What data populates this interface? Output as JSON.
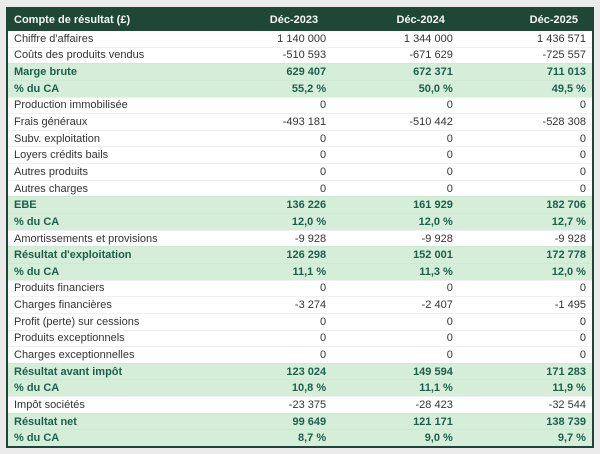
{
  "colors": {
    "header_bg": "#1e4737",
    "header_text": "#f7f7f4",
    "highlight_bg": "#d5eed9",
    "highlight_text": "#1d5f4b",
    "body_text": "#333333",
    "page_bg": "#ebebeb"
  },
  "chart_data": {
    "type": "table",
    "title": "Compte de résultat (£)",
    "columns": [
      "Déc-2023",
      "Déc-2024",
      "Déc-2025"
    ],
    "rows": [
      {
        "label": "Chiffre d'affaires",
        "values": [
          "1 140 000",
          "1 344 000",
          "1 436 571"
        ],
        "highlight": false
      },
      {
        "label": "Coûts des produits vendus",
        "values": [
          "-510 593",
          "-671 629",
          "-725 557"
        ],
        "highlight": false
      },
      {
        "label": "Marge brute",
        "values": [
          "629 407",
          "672 371",
          "711 013"
        ],
        "highlight": true
      },
      {
        "label": "% du CA",
        "values": [
          "55,2 %",
          "50,0 %",
          "49,5 %"
        ],
        "highlight": true
      },
      {
        "label": "Production immobilisée",
        "values": [
          "0",
          "0",
          "0"
        ],
        "highlight": false
      },
      {
        "label": "Frais généraux",
        "values": [
          "-493 181",
          "-510 442",
          "-528 308"
        ],
        "highlight": false
      },
      {
        "label": "Subv. exploitation",
        "values": [
          "0",
          "0",
          "0"
        ],
        "highlight": false
      },
      {
        "label": "Loyers crédits bails",
        "values": [
          "0",
          "0",
          "0"
        ],
        "highlight": false
      },
      {
        "label": "Autres produits",
        "values": [
          "0",
          "0",
          "0"
        ],
        "highlight": false
      },
      {
        "label": "Autres charges",
        "values": [
          "0",
          "0",
          "0"
        ],
        "highlight": false
      },
      {
        "label": "EBE",
        "values": [
          "136 226",
          "161 929",
          "182 706"
        ],
        "highlight": true
      },
      {
        "label": "% du CA",
        "values": [
          "12,0 %",
          "12,0 %",
          "12,7 %"
        ],
        "highlight": true
      },
      {
        "label": "Amortissements et provisions",
        "values": [
          "-9 928",
          "-9 928",
          "-9 928"
        ],
        "highlight": false
      },
      {
        "label": "Résultat d'exploitation",
        "values": [
          "126 298",
          "152 001",
          "172 778"
        ],
        "highlight": true
      },
      {
        "label": "% du CA",
        "values": [
          "11,1 %",
          "11,3 %",
          "12,0 %"
        ],
        "highlight": true
      },
      {
        "label": "Produits financiers",
        "values": [
          "0",
          "0",
          "0"
        ],
        "highlight": false
      },
      {
        "label": "Charges financières",
        "values": [
          "-3 274",
          "-2 407",
          "-1 495"
        ],
        "highlight": false
      },
      {
        "label": "Profit (perte) sur cessions",
        "values": [
          "0",
          "0",
          "0"
        ],
        "highlight": false
      },
      {
        "label": "Produits exceptionnels",
        "values": [
          "0",
          "0",
          "0"
        ],
        "highlight": false
      },
      {
        "label": "Charges exceptionnelles",
        "values": [
          "0",
          "0",
          "0"
        ],
        "highlight": false
      },
      {
        "label": "Résultat avant impôt",
        "values": [
          "123 024",
          "149 594",
          "171 283"
        ],
        "highlight": true
      },
      {
        "label": "% du CA",
        "values": [
          "10,8 %",
          "11,1 %",
          "11,9 %"
        ],
        "highlight": true
      },
      {
        "label": "Impôt sociétés",
        "values": [
          "-23 375",
          "-28 423",
          "-32 544"
        ],
        "highlight": false
      },
      {
        "label": "Résultat net",
        "values": [
          "99 649",
          "121 171",
          "138 739"
        ],
        "highlight": true
      },
      {
        "label": "% du CA",
        "values": [
          "8,7 %",
          "9,0 %",
          "9,7 %"
        ],
        "highlight": true
      }
    ]
  }
}
